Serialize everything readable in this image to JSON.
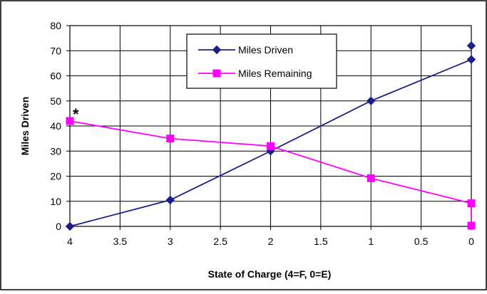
{
  "chart_data": {
    "type": "line",
    "title": "",
    "xlabel": "State of Charge (4=F, 0=E)",
    "ylabel": "Miles Driven",
    "x_reversed": true,
    "xlim": [
      0,
      4
    ],
    "ylim": [
      0,
      80
    ],
    "x_ticks": [
      "4",
      "3.5",
      "3",
      "2.5",
      "2",
      "1.5",
      "1",
      "0.5",
      "0"
    ],
    "y_ticks": [
      "0",
      "10",
      "20",
      "30",
      "40",
      "50",
      "60",
      "70",
      "80"
    ],
    "x_tick_values": [
      4,
      3.5,
      3,
      2.5,
      2,
      1.5,
      1,
      0.5,
      0
    ],
    "y_tick_values": [
      0,
      10,
      20,
      30,
      40,
      50,
      60,
      70,
      80
    ],
    "grid": true,
    "legend_position": "top-center",
    "series": [
      {
        "name": "Miles Driven",
        "color": "#1a1f8c",
        "marker": "diamond",
        "points": [
          [
            4,
            0
          ],
          [
            3,
            10.5
          ],
          [
            2,
            30
          ],
          [
            1,
            50
          ],
          [
            0,
            66.5
          ]
        ]
      },
      {
        "name": "Miles Remaining",
        "color": "#ff00ff",
        "marker": "square",
        "points": [
          [
            4,
            42
          ],
          [
            3,
            35
          ],
          [
            2,
            32
          ],
          [
            1,
            19.2
          ],
          [
            0,
            9.2
          ]
        ]
      }
    ],
    "extra_points": [
      {
        "series": "Miles Driven",
        "x": 0,
        "y": 72,
        "marker": "diamond",
        "color": "#1a1f8c"
      },
      {
        "series": "Miles Remaining",
        "x": 0,
        "y": 0.3,
        "marker": "square",
        "color": "#ff00ff",
        "connected": true
      }
    ],
    "annotations": [
      {
        "text": "*",
        "x": 4,
        "y": 42
      }
    ]
  }
}
